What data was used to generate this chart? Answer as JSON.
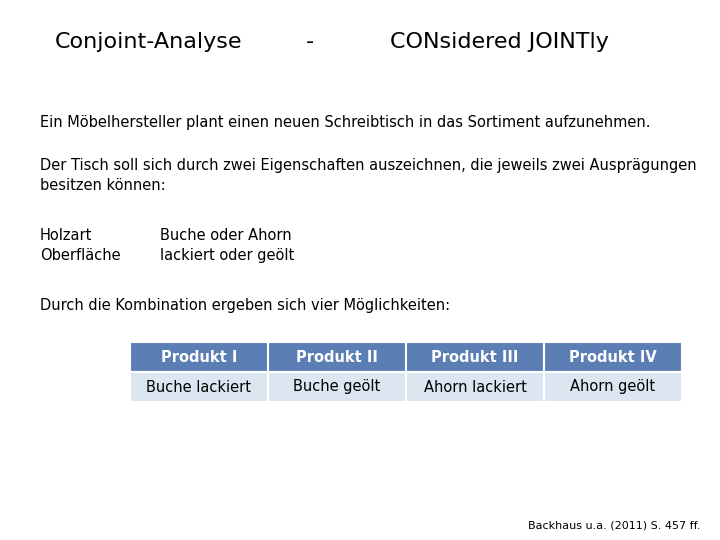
{
  "title_left": "Conjoint-Analyse",
  "title_dash": "-",
  "title_right": "CONsidered JOINTly",
  "line1": "Ein Möbelhersteller plant einen neuen Schreibtisch in das Sortiment aufzunehmen.",
  "line2": "Der Tisch soll sich durch zwei Eigenschaften auszeichnen, die jeweils zwei Ausprägungen",
  "line2b": "besitzen können:",
  "holzart_label": "Holzart",
  "holzart_value": "Buche oder Ahorn",
  "oberflaeche_label": "Oberfläche",
  "oberflaeche_value": "lackiert oder geölt",
  "kombinationen_text": "Durch die Kombination ergeben sich vier Möglichkeiten:",
  "table_headers": [
    "Produkt I",
    "Produkt II",
    "Produkt III",
    "Produkt IV"
  ],
  "table_values": [
    "Buche lackiert",
    "Buche geölt",
    "Ahorn lackiert",
    "Ahorn geölt"
  ],
  "header_bg_color": "#5b7eb5",
  "header_text_color": "#ffffff",
  "row_bg_color": "#dce6f1",
  "row_text_color": "#000000",
  "footnote": "Backhaus u.a. (2011) S. 457 ff.",
  "bg_color": "#ffffff",
  "title_fontsize": 16,
  "body_fontsize": 10.5,
  "table_fontsize": 10.5
}
